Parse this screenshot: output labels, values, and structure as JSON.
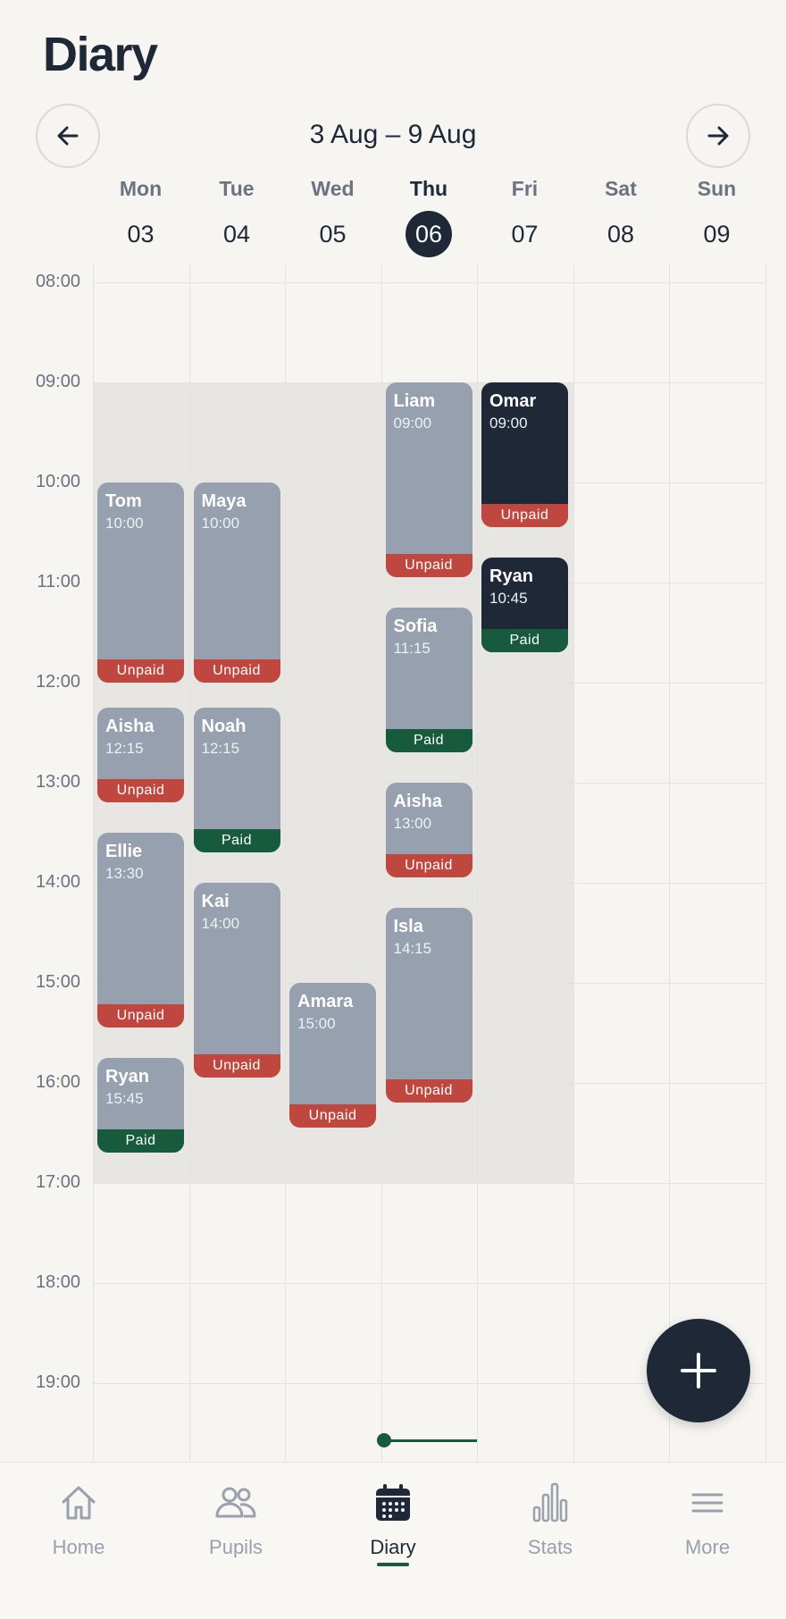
{
  "header": {
    "title": "Diary",
    "week_range": "3 Aug – 9 Aug",
    "prev_icon": "arrow-left-icon",
    "next_icon": "arrow-right-icon"
  },
  "days": [
    {
      "name": "Mon",
      "num": "03",
      "today": false
    },
    {
      "name": "Tue",
      "num": "04",
      "today": false
    },
    {
      "name": "Wed",
      "num": "05",
      "today": false
    },
    {
      "name": "Thu",
      "num": "06",
      "today": true
    },
    {
      "name": "Fri",
      "num": "07",
      "today": false
    },
    {
      "name": "Sat",
      "num": "08",
      "today": false
    },
    {
      "name": "Sun",
      "num": "09",
      "today": false
    }
  ],
  "hours": [
    "08:00",
    "09:00",
    "10:00",
    "11:00",
    "12:00",
    "13:00",
    "14:00",
    "15:00",
    "16:00",
    "17:00",
    "18:00",
    "19:00"
  ],
  "lessons": [
    {
      "pupil": "Tom",
      "time": "10:00",
      "status": "Unpaid",
      "day": 0,
      "start": 10.0,
      "end": 12.0,
      "dark": false
    },
    {
      "pupil": "Aisha",
      "time": "12:15",
      "status": "Unpaid",
      "day": 0,
      "start": 12.25,
      "end": 13.2,
      "dark": false
    },
    {
      "pupil": "Ellie",
      "time": "13:30",
      "status": "Unpaid",
      "day": 0,
      "start": 13.5,
      "end": 15.45,
      "dark": false
    },
    {
      "pupil": "Ryan",
      "time": "15:45",
      "status": "Paid",
      "day": 0,
      "start": 15.75,
      "end": 16.7,
      "dark": false
    },
    {
      "pupil": "Maya",
      "time": "10:00",
      "status": "Unpaid",
      "day": 1,
      "start": 10.0,
      "end": 12.0,
      "dark": false
    },
    {
      "pupil": "Noah",
      "time": "12:15",
      "status": "Paid",
      "day": 1,
      "start": 12.25,
      "end": 13.7,
      "dark": false
    },
    {
      "pupil": "Kai",
      "time": "14:00",
      "status": "Unpaid",
      "day": 1,
      "start": 14.0,
      "end": 15.95,
      "dark": false
    },
    {
      "pupil": "Amara",
      "time": "15:00",
      "status": "Unpaid",
      "day": 2,
      "start": 15.0,
      "end": 16.45,
      "dark": false
    },
    {
      "pupil": "Liam",
      "time": "09:00",
      "status": "Unpaid",
      "day": 3,
      "start": 9.0,
      "end": 10.95,
      "dark": false
    },
    {
      "pupil": "Sofia",
      "time": "11:15",
      "status": "Paid",
      "day": 3,
      "start": 11.25,
      "end": 12.7,
      "dark": false
    },
    {
      "pupil": "Aisha",
      "time": "13:00",
      "status": "Unpaid",
      "day": 3,
      "start": 13.0,
      "end": 13.95,
      "dark": false
    },
    {
      "pupil": "Isla",
      "time": "14:15",
      "status": "Unpaid",
      "day": 3,
      "start": 14.25,
      "end": 16.2,
      "dark": false
    },
    {
      "pupil": "Omar",
      "time": "09:00",
      "status": "Unpaid",
      "day": 4,
      "start": 9.0,
      "end": 10.45,
      "dark": true
    },
    {
      "pupil": "Ryan",
      "time": "10:45",
      "status": "Paid",
      "day": 4,
      "start": 10.75,
      "end": 11.7,
      "dark": true
    }
  ],
  "fab": {
    "icon": "plus-icon"
  },
  "tabs": [
    {
      "label": "Home",
      "icon": "home-icon",
      "active": false
    },
    {
      "label": "Pupils",
      "icon": "pupils-icon",
      "active": false
    },
    {
      "label": "Diary",
      "icon": "calendar-icon",
      "active": true
    },
    {
      "label": "Stats",
      "icon": "stats-icon",
      "active": false
    },
    {
      "label": "More",
      "icon": "menu-icon",
      "active": false
    }
  ],
  "colors": {
    "accent": "#1e2836",
    "unpaid": "#c0473f",
    "paid": "#175a3e",
    "lesson": "#97a0af",
    "lesson_dark": "#1e2836"
  }
}
